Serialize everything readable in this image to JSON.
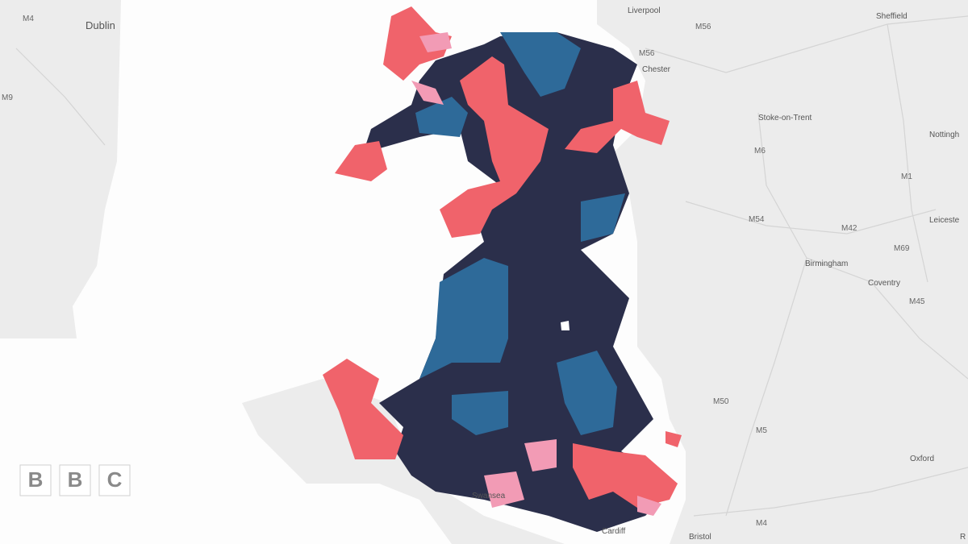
{
  "map": {
    "labels": [
      {
        "text": "M4"
      },
      {
        "text": "Dublin"
      },
      {
        "text": "M9"
      },
      {
        "text": "Liverpool"
      },
      {
        "text": "Sheffield"
      },
      {
        "text": "M56"
      },
      {
        "text": "M56"
      },
      {
        "text": "Chester"
      },
      {
        "text": "Stoke-on-Trent"
      },
      {
        "text": "Nottingh"
      },
      {
        "text": "M6"
      },
      {
        "text": "M1"
      },
      {
        "text": "M54"
      },
      {
        "text": "M42"
      },
      {
        "text": "Leiceste"
      },
      {
        "text": "Birmingham"
      },
      {
        "text": "M69"
      },
      {
        "text": "Coventry"
      },
      {
        "text": "M45"
      },
      {
        "text": "M50"
      },
      {
        "text": "M5"
      },
      {
        "text": "Oxford"
      },
      {
        "text": "Swansea"
      },
      {
        "text": "Cardiff"
      },
      {
        "text": "Bristol"
      },
      {
        "text": "M4"
      },
      {
        "text": "R"
      }
    ],
    "logo": [
      "B",
      "B",
      "C"
    ]
  }
}
